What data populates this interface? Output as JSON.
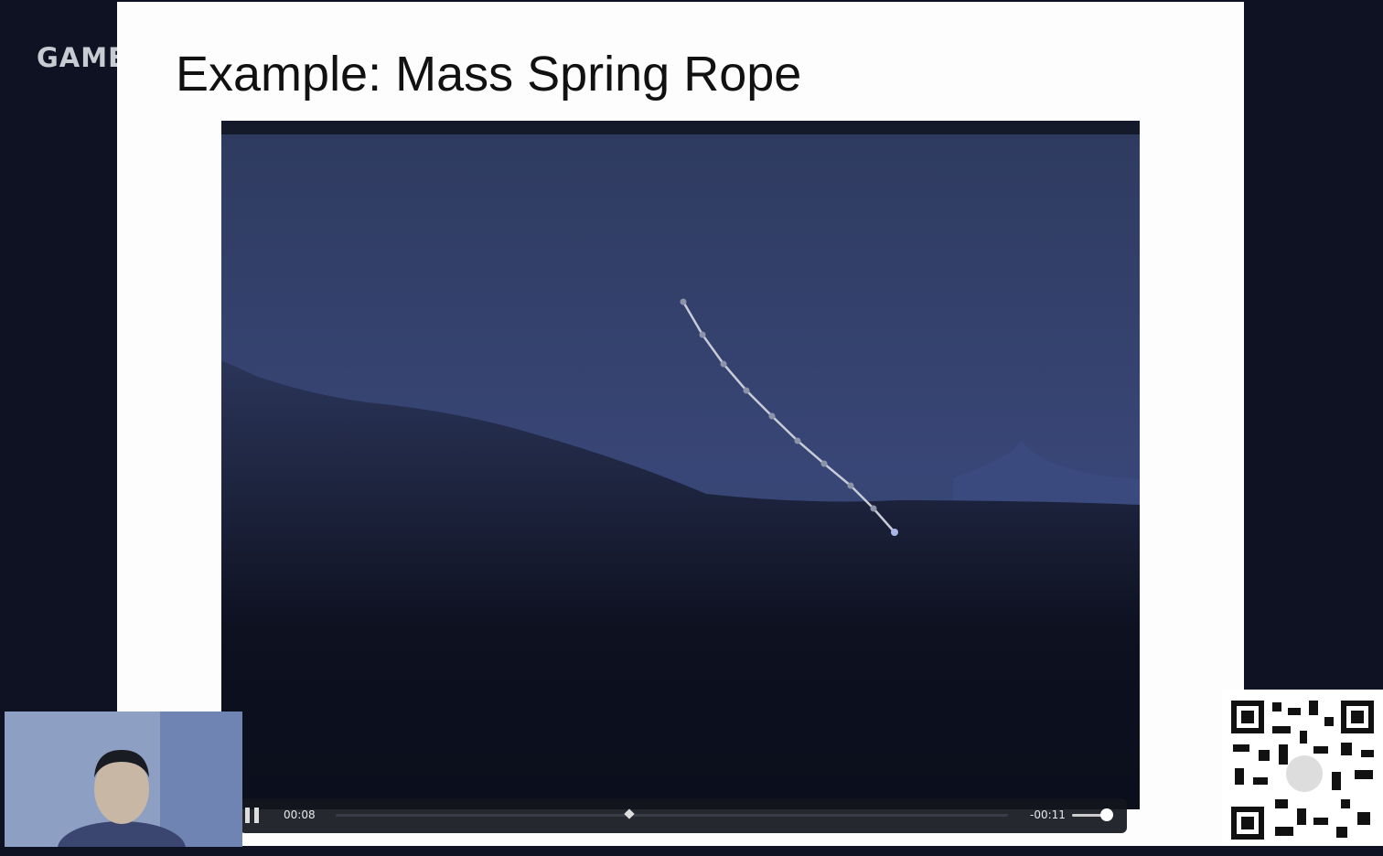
{
  "header": {
    "channel": "GAME"
  },
  "slide": {
    "title": "Example: Mass Spring Rope"
  },
  "player": {
    "elapsed": "00:08",
    "remaining": "-00:11"
  }
}
